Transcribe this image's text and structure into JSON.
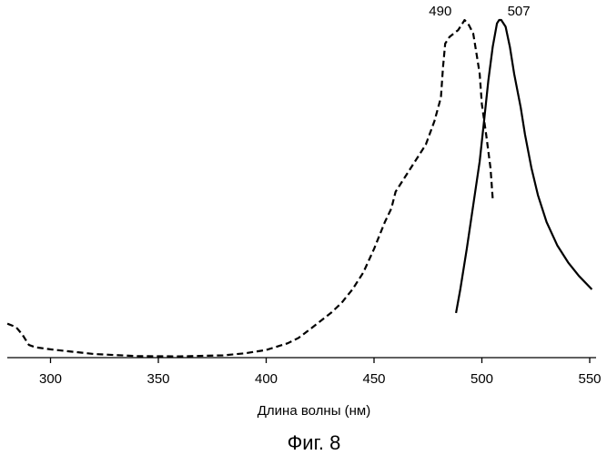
{
  "chart_data": {
    "type": "line",
    "xlabel": "Длина волны (нм)",
    "caption": "Фиг. 8",
    "xlim": [
      280,
      552
    ],
    "ylim": [
      0,
      1
    ],
    "x_ticks": [
      300,
      350,
      400,
      450,
      500,
      550
    ],
    "grid": false,
    "series": [
      {
        "style": "dashed",
        "x": [
          280,
          284,
          287,
          290,
          293,
          300,
          320,
          340,
          360,
          380,
          390,
          400,
          410,
          415,
          420,
          425,
          430,
          435,
          440,
          445,
          450,
          455,
          458,
          460,
          463,
          466,
          470,
          474,
          478,
          481,
          482,
          483,
          485,
          487,
          489,
          491,
          492,
          494,
          496,
          497,
          498,
          499,
          500,
          502,
          504,
          505
        ],
        "y": [
          0.098,
          0.088,
          0.065,
          0.035,
          0.028,
          0.022,
          0.008,
          0.002,
          0.001,
          0.004,
          0.01,
          0.02,
          0.04,
          0.056,
          0.08,
          0.105,
          0.13,
          0.16,
          0.2,
          0.25,
          0.32,
          0.4,
          0.44,
          0.49,
          0.52,
          0.55,
          0.59,
          0.63,
          0.7,
          0.77,
          0.86,
          0.93,
          0.95,
          0.96,
          0.97,
          0.99,
          1.0,
          0.985,
          0.96,
          0.92,
          0.88,
          0.84,
          0.75,
          0.66,
          0.56,
          0.47
        ]
      },
      {
        "style": "solid",
        "x": [
          488,
          490,
          493,
          496,
          499,
          501,
          503,
          505,
          507,
          508,
          509,
          511,
          513,
          515,
          518,
          520,
          523,
          526,
          530,
          535,
          540,
          545,
          551
        ],
        "y": [
          0.13,
          0.2,
          0.32,
          0.45,
          0.58,
          0.7,
          0.82,
          0.92,
          0.99,
          1.0,
          1.0,
          0.98,
          0.92,
          0.84,
          0.74,
          0.66,
          0.56,
          0.48,
          0.4,
          0.33,
          0.28,
          0.24,
          0.2
        ]
      }
    ],
    "annotations": [
      {
        "text": "490",
        "x": 490,
        "y": 1.0
      },
      {
        "text": "507",
        "x": 507,
        "y": 1.0
      }
    ]
  }
}
